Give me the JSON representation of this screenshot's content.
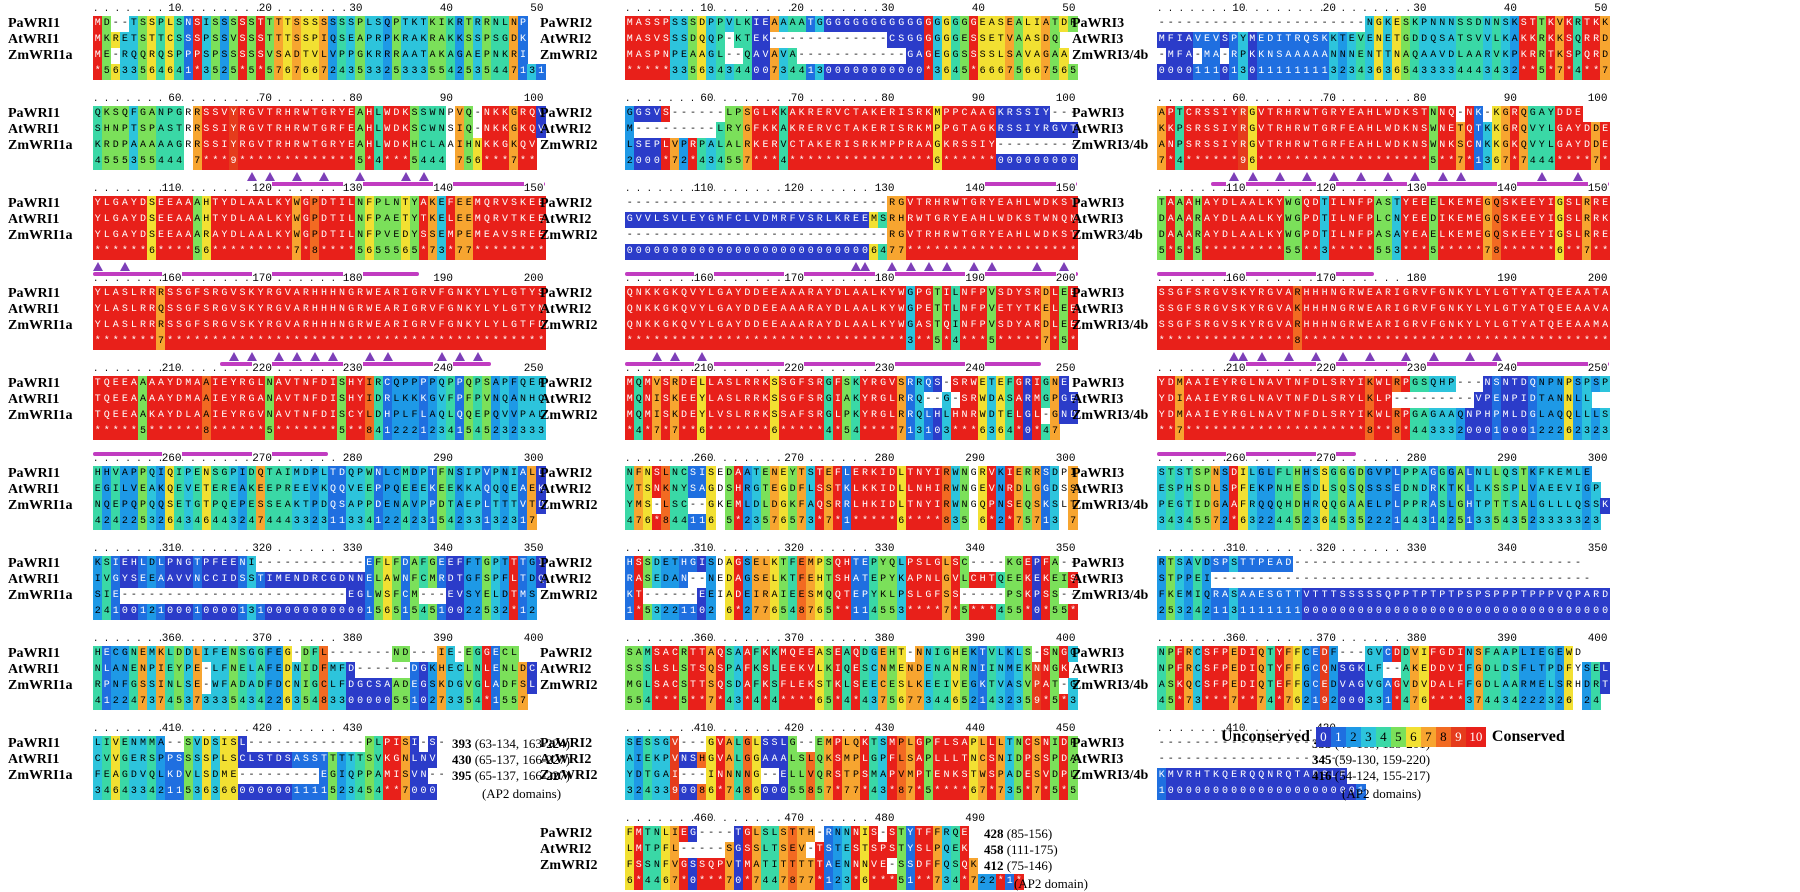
{
  "palette": {
    "0": "#2b3cc9",
    "1": "#1f6fe0",
    "2": "#1e99e6",
    "3": "#2dc4dc",
    "4": "#3ad8a6",
    "5": "#7be05a",
    "6": "#f2e032",
    "7": "#f7a530",
    "8": "#f26a22",
    "9": "#e53c1c",
    "10": "#e8201a",
    "gap": "#ffffff"
  },
  "panels": [
    {
      "id": "wri1",
      "names": [
        "PaWRI1",
        "AtWRI1",
        "ZmWRI1a"
      ],
      "endnotes": [
        {
          "length": "393",
          "domains": "(63-134, 163-224)"
        },
        {
          "length": "430",
          "domains": "(65-137, 166-227)"
        },
        {
          "length": "395",
          "domains": "(65-137, 166-227)"
        }
      ],
      "footnote": "(AP2 domains)",
      "blocks": [
        {
          "ruler": [
            "10",
            "20",
            "30",
            "40",
            "50"
          ],
          "seqs": [
            "MD--TSSPLSNSISSSSSTTTTSSSSSSSPLSQPTKTKIKRTRRNLNP",
            "MKRETSTTCSSSPSSVSSSTTTSSPIQSEAPRPKRAKRAKKSSPSGDK",
            "ME-RQQRQSPPPSPSSSSSVSADTVLVPPGKRRRAATAKAGAEPNKRI"
          ],
          "cons": "*5633564641*3525*5*5767667243533253335542535447131"
        },
        {
          "ruler": [
            "60",
            "70",
            "80",
            "90",
            "100"
          ],
          "seqs": [
            "QKSQFGANPGRRSSVYRGVTRHRWTGRYEAHLWDKSSWNPVQ-NKKGRQV",
            "SHNPTSPASTRRSSIYRGVTRHRWTGRFEAHLWDKSCWNSIQ-NKKGKQV",
            "KRDPAAAAAGRRSSIYRGVTRHRWTGRYEAHLWDKHCLAAIHNKKGKQV"
          ],
          "cons": "4555355444 7***9*************5*4***5444 756***7**",
          "marks": [
            17,
            19,
            22,
            25,
            29,
            34,
            36
          ],
          "domain": [
            18,
            50
          ]
        },
        {
          "ruler": [
            "110",
            "120",
            "130",
            "140",
            "150"
          ],
          "seqs": [
            "YLGAYDSEEAAAHTYDLAALKYWGPDTILNFPLNTYAKEFEEMQRVSKEE",
            "YLGAYDSEEAAAHTYDLAALKYWGPDTILNFPAETYTKELEEMQRVTKEE",
            "YLGAYDSEEAAARAYDLAALKYWGPDTILNFPVEDYSSEMPEMEAVSREE"
          ],
          "cons": "******6****56*********7*8****5655565*73*77********",
          "marks": [
            0,
            3
          ],
          "domain": [
            0,
            36
          ]
        },
        {
          "ruler": [
            "160",
            "170",
            "180",
            "190",
            "200"
          ],
          "seqs": [
            "YLASLRRRSSGFSRGVSKYRGVARHHHNGRWEARIGRVFGNKYLYLGTYS",
            "YLASLRRQSSGFSRGVSKYRGVARHHHNGRWEARIGRVFGNKYLYLGTYN",
            "YLASLRRRSSGFSRGVSKYRGVARHHHNGRWEARIGRVFGNKYLYLGTFD"
          ],
          "cons": "*******7*********************************************75",
          "marks": [
            15,
            17,
            20,
            22,
            24,
            26,
            30,
            32,
            38,
            40,
            42
          ],
          "domain": [
            14,
            44
          ]
        },
        {
          "ruler": [
            "210",
            "220",
            "230",
            "240",
            "250"
          ],
          "seqs": [
            "TQEEAAAAYDMAAIEYRGLNAVTNFDISHYIRCQPPPPQPPQPSAPFQEP",
            "TQEEAAAAYDMAAIEYRGANAVTNFDISHYIDRLKKKGVFPFPVNQANHQ",
            "TQEEAAKAYDLAAIEYRGVNAVTNFDISCYLDHPLFLAQLQQEPQVVPAL"
          ],
          "cons": "*****5******8******5*******5**841222123415452323332",
          "domain": [
            0,
            26
          ]
        },
        {
          "ruler": [
            "260",
            "270",
            "280",
            "290",
            "300"
          ],
          "seqs": [
            "HHVAPPQIQIPENSGPIDQTAIMDPLTDQPWNLCMDPTFNSIPVPNIALD",
            "EGILVEAKQEVETEREAKEEPREEVKQQVEEPPQEEEKEEKKAQQQEAEK",
            "NQEPQPQQSETGTPQEPESSEAKTPDQSAPPDENAVPPDTAEPLTTTVTD"
          ],
          "cons": "4242253264346443247444332311334122423154233132317"
        },
        {
          "ruler": [
            "310",
            "320",
            "330",
            "340",
            "350"
          ],
          "seqs": [
            "KSIEHLDLPNGTPFEENI------------EFLFDAFGEEFFTGPTTTGI",
            "IVGYSEEAAVVNCCIDSSTIMENDRCGDNNELAWNFCMRDTGFSPFLTDQ",
            "SIE-------------------------EGLWSFCM---EVSYELDTMS"
          ],
          "cons": "2410012100010000131000000000001565154510022532*12"
        },
        {
          "ruler": [
            "360",
            "370",
            "380",
            "390",
            "400"
          ],
          "seqs": [
            "HECGNEMKLDDLIFENSGGFEG-DFL-------ND---IE-EGGECL",
            "NLANENPIEYPE-LFNELAFEDNIDFMFD------DGKHECLNLENLDC",
            "RPNFGSSINLSE-WFADADFDCNIGCLFDGCSAADEGSKDGVGLADFSL"
          ],
          "cons": "4122473745373335434226354833000005510273354*1557"
        },
        {
          "ruler": [
            "410",
            "420",
            "430",
            "",
            ""
          ],
          "seqs": [
            "LIVENMMA--SVDSISL-------------PLPISI-S-",
            "CVVGERSPPSSSSPLSCLSTDSASSTTTTTSVKGNLNV",
            "FEAGDVQLKDVLSDME---------EGIQPPAMISVN--"
          ],
          "cons": "34643342115363660000001111523454**7000"
        }
      ]
    },
    {
      "id": "wri2",
      "names": [
        "PaWRI2",
        "AtWRI2",
        "ZmWRI2"
      ],
      "endnotes": [
        {
          "length": "428",
          "domains": "(85-156)"
        },
        {
          "length": "458",
          "domains": "(111-175)"
        },
        {
          "length": "412",
          "domains": "(75-146)"
        }
      ],
      "footnote": "(AP2 domain)",
      "blocks": [
        {
          "ruler": [
            "10",
            "20",
            "30",
            "40",
            "50"
          ],
          "seqs": [
            "MASSPSSSDPPVLKIEAAAATGGGGGGGGGGGGGGGGGGEASEALIATDR",
            "MASVSSSDQQP-KTEK-------------CSGGGGGGESSETVAASDQ",
            "MASPNPEAAGL--QAVAVA------------GAGEGGSSSSLSAVAGAA"
          ],
          "cons": "*****3356343440073441300000000000*3645*66675667565644"
        },
        {
          "ruler": [
            "60",
            "70",
            "80",
            "90",
            "100"
          ],
          "seqs": [
            "GGSVS------LPSGLKKAKRERVCTAKERISRKMPPCAAGKRSSIY----",
            "M---------LRYGFKKAKRERVCTAKERISRKMPPGTAGKRSSIYRGVTRFGCEL",
            "LSEPLVPRPALALRKERVCTAKERISRKMPPRAAGKRSSIY---------"
          ],
          "cons": "2000*72*434557***4****************6******000000000000",
          "domain": [
            38,
            50
          ]
        },
        {
          "ruler": [
            "110",
            "120",
            "130",
            "140",
            "150"
          ],
          "seqs": [
            "-----------------------------RGVTRHRWTGRYEAHLWDKSTWNQN",
            "GVVLSVLEYGMFCLVDMRFVSRLKREEMSRHRWTGRYEAHLWDKSTWNQN",
            "-----------------------------RGVTRHRWTGRYEAHLWDKSTWNQN"
          ],
          "cons": "0000000000000000000000000006477********************",
          "marks": [
            25,
            26,
            29,
            31,
            33,
            35,
            38,
            40,
            45,
            48
          ],
          "domain": [
            0,
            50
          ]
        },
        {
          "ruler": [
            "160",
            "170",
            "180",
            "190",
            "200"
          ],
          "seqs": [
            "QNKKGKQVYLGAYDDEEAAARAYDLAALKYWGPGTILNFPVSDYSRDLEE",
            "QNKKGKQVYLGAYDDEEAAARAYDLAALKYWGPETTLNFPVETYTKELEE",
            "QNKKGKQVYLGAYDDEEAAARAYDLAALKYWGASTQINFPVSDYARDLEE"
          ],
          "cons": "*******************************3**5*4***5*****7*5***",
          "marks": [
            3,
            5,
            8
          ],
          "domain": [
            0,
            46
          ]
        },
        {
          "ruler": [
            "210",
            "220",
            "230",
            "240",
            "250"
          ],
          "seqs": [
            "MQMVSRDELLASLRRKSSGFSRGFSKYRGVSRRQS-SRWETEFGRIGNE",
            "MQNISKEEYLASLRRKSSGFSRGIAKYRGLRRQ--G-SRWDASARMGPGE",
            "MQMISKDEYLVSLRRKSSAFSRGLPKYRGLRRQLHLHNRWDTELGL-GND"
          ],
          "cons": "*4*7*7**6*******6*****4*54****713103***6364*0*47"
        },
        {
          "ruler": [
            "260",
            "270",
            "280",
            "290",
            "300"
          ],
          "seqs": [
            "NFNSLNCSISEDAATENEYTSTEFLERKIDLTNYIRWNGRVKIERRSDPIT",
            "VTSNKNYSAGDSHRGTEGDFLSSTKLKKIDLLNHIRWNGEVNRDLGGDSSS",
            "YMS-LSC--GKEMLDLDGKFAQSRRLHKIDLTNYIRWNGQPNSEQSKSLTS"
          ],
          "cons": "476*844116 5*23576573*7*1*****6****835 6*2*75713 7"
        },
        {
          "ruler": [
            "310",
            "320",
            "330",
            "340",
            "350"
          ],
          "seqs": [
            "HSSDETHGISDAGSELKTFEMPSQHTEPYQLPSLGLSC----KGEPFA--",
            "RASEDAN--NEDAGSELKTFEHTSHATEPYKAPNLGVLCHTQEEKEKEISP",
            "KT------EEIADEIRAIEESMQQTEPYKLPSLGFSS-----PSKPSS--"
          ],
          "cons": "1*53221102 6*2776548765**114553****7*5***455*0*55*37*80"
        },
        {
          "ruler": [
            "360",
            "370",
            "380",
            "390",
            "400"
          ],
          "seqs": [
            "SAMSACRTTAQSAAFKKMQEEASEAQDGEHT-NNIGHEKTVLKLS-SNGG",
            "SSSLSLSTSQSPAFKSLEEKVLKIQESCNMENDENANRNIINMEKNNGK",
            "MGLSACSTTSQSDAFKSFLEKSTKLSEECESLKEEIVEGKTVASVPAT-G"
          ],
          "cons": "554***5**7*43*4*4****65*4*43756773446521432359*5*3445*7*5*34"
        },
        {
          "ruler": [
            "410",
            "420",
            "430",
            "440",
            "450"
          ],
          "seqs": [
            "SESSGV---GVALGLSSLG--EMPLQKTSMPLGPFLSAPLLLTNCSNIDPSPDSA",
            "AIEKPVNSHGVALGGAAALSLQKSMPLGPFLSAPLLLTNCSNIDPSSPDA",
            "YDTGAI---INNNNG--ELLVQRSTPSMAPVMPTENKSTWSPADESVDPL"
          ],
          "cons": "3243390086*748600055857*77*43*87*5****67*735*7*5*5*"
        },
        {
          "ruler": [
            "460",
            "470",
            "480",
            "490",
            ""
          ],
          "seqs": [
            "FMTNLIEG----TGLSLSTTH-RNNNIS-STYTFFRQE",
            "LMTPFL-----SGSSLTSEV-TSTESTSPSTYSLPQEK",
            "FSSNFVGSSQPVTMATITTTTTAENNNVE-SSDFFQSQK"
          ],
          "cons": "6*4467*0***70*7447877*123*6***51**734*722*1*"
        }
      ]
    },
    {
      "id": "wri3",
      "names": [
        "PaWRI3",
        "AtWRI3",
        "ZmWRI3/4b"
      ],
      "names_alt": [
        "PaWRI3",
        "AtWRI3",
        "ZmWR3/4b"
      ],
      "endnotes": [
        {
          "length": "335",
          "domains": "(40-109, 139-201)"
        },
        {
          "length": "345",
          "domains": "(59-130, 159-220)"
        },
        {
          "length": "416",
          "domains": "(54-124, 155-217)"
        }
      ],
      "footnote": "(AP2 domains)",
      "blocks": [
        {
          "ruler": [
            "10",
            "20",
            "30",
            "40",
            "50"
          ],
          "seqs": [
            "-----------------------NGKESKPNNNSSDNNSKSTTKVKRTKKSVPRE",
            "MFIAVEVSPYMEDITRQSKKTEVENETGDDQSATSVVLKAKKRKKSQRRD",
            "-MFA-MA-RPKKNSAAAAANNNENTTNAQAAVDLAARVKPKRRTKSPQRD"
          ],
          "cons": "0000111013011111111323436365433334443432**5*7*4**7"
        },
        {
          "ruler": [
            "60",
            "70",
            "80",
            "90",
            "100"
          ],
          "seqs": [
            "APTCRSSIYRGVTRHRWTGRYEAHLWDKSTNNQ-NK-KGRQGAYDDE",
            "KKPSRSSIYRGVTRHRWTGRFEAHLWDKNSWNETQTKKGRQVYLGAYDDE",
            "ANPSRSSIYRGVTRHRWTGRFEAHLWDKNSWNKSCNKKGKQVYLGAYDDE"
          ],
          "cons": "7*4******96*******************5**7*1367*7444****7*",
          "marks": [
            8,
            10,
            13,
            16,
            19,
            22,
            25,
            28,
            31,
            33,
            42,
            46
          ],
          "domain": [
            6,
            50
          ]
        },
        {
          "ruler": [
            "110",
            "120",
            "130",
            "140",
            "150"
          ],
          "seqs": [
            "TAAAHAYDLAALKYWGQDTILNFPASTYEEELKEMEGQSKEEYIGSLRRE",
            "DAAARAYDLAALKYWGPDTILNFPLCNYEEDIKEMEGQSKEEYIGSLRRK",
            "DAAARAYDLAALKYWGPDTILNFPASAYEAELKEMEGQSKEEYIGSLRRE"
          ],
          "cons": "5*5*5*********55**3*****553***5*****78******6**7***",
          "domain": [
            0,
            24
          ]
        },
        {
          "ruler": [
            "160",
            "170",
            "180",
            "190",
            "200"
          ],
          "seqs": [
            "SSGFSRGVSKYRGVARHHHNGRWEARIGRVFGNKYLYLGTYATQEEAATA",
            "SSGFSRGVSKYRGVAKHHHNGRWEARIGRVFGNKYLYLGTYATQEEAAVA",
            "SSGFSRGVSKYRGVARHHHNGRWEARIGRVFGNKYLYLGTYATQEEAAMA"
          ],
          "cons": "***************8**********************************6**",
          "marks": [
            8,
            9,
            11,
            14,
            17,
            20,
            23,
            27,
            30,
            34,
            37
          ],
          "domain": [
            8,
            50
          ]
        },
        {
          "ruler": [
            "210",
            "220",
            "230",
            "240",
            "250"
          ],
          "seqs": [
            "YDMAAIEYRGLNAVTNFDLSRYIKWLRPGSQHP---NSNTDQNPNPSPSP",
            "YDIAAIEYRGLNAVTNFDLSRYLKLP---------VPENPIDTANNLL",
            "YDMAAIEYRGLNAVTNFDLSRYIKWLRPGAGAAQNPHPMLDGLAQQLLLS"
          ],
          "cons": "**7********************8**8*443332000100012226232333152",
          "domain": [
            0,
            22
          ]
        },
        {
          "ruler": [
            "260",
            "270",
            "280",
            "290",
            "300"
          ],
          "seqs": [
            "STSTSPNSDILGLFLHHSSGGGDGVPLPPAGGGALNLLQSTKFKEMLE",
            "ESPHSDLSPFEKPNHESDLSQSQSSSEDNDRKTKLLKSSPLVAEEVIGP",
            "PEGTIDGAAFRQQQHDHRQQGAAELPLPPRASLGHTPTTSALGLLLQSSK"
          ],
          "cons": "34345572*6322445236453522214431425133543523333323"
        },
        {
          "ruler": [
            "310",
            "320",
            "330",
            "340",
            "350"
          ],
          "seqs": [
            "RTSAVDSPSTTPEAD--------------------------------",
            "STPPEI------------------------------------------",
            "FKEMIQRASAAESGTTVTTTSSSSSQPPTPTPTPSPSPPPTPPPVQPARD"
          ],
          "cons": "25324211311111110000000000000000000000000000000000"
        },
        {
          "ruler": [
            "360",
            "370",
            "380",
            "390",
            "400"
          ],
          "seqs": [
            "NPFRCSFPEDIQTYFFCEDF---GVCDDVIFGDINSFAAPLIEGEWD",
            "NPFRCSFPEDIQTYFFGCQNSGKLF--AKEDDVIFGDLDSFLTPDFYSELN",
            "ASKQCSFPEDIQTEFFGCEDVAGVGAGVDVDALFFGDLAARMELSRHDRTK"
          ],
          "cons": "45*73***7**74*762192000331*476****374434222326 24"
        },
        {
          "ruler": [
            "410",
            "420",
            "",
            "",
            ""
          ],
          "seqs": [
            "---------------------",
            "---------------------",
            "KMVRHTKQERQQNRQTAPSLF"
          ],
          "cons": "10000000000000000000001"
        }
      ]
    }
  ],
  "legend": {
    "left": "Unconserved",
    "right": "Conserved",
    "scale": [
      "0",
      "1",
      "2",
      "3",
      "4",
      "5",
      "6",
      "7",
      "8",
      "9",
      "10"
    ]
  }
}
